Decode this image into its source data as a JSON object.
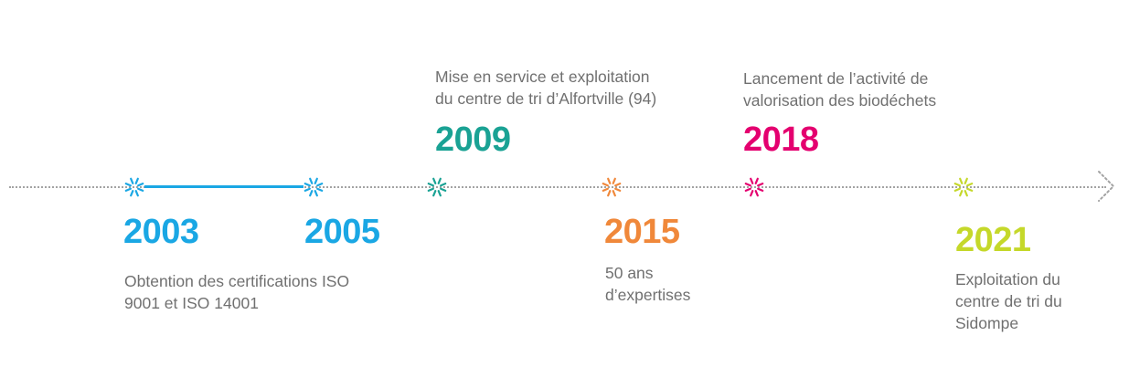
{
  "colors": {
    "blue": "#1aa7e4",
    "teal": "#1aa294",
    "orange": "#f0883a",
    "magenta": "#e4006f",
    "lime": "#c5d82a",
    "line": "#a3a3a3",
    "text": "#707070"
  },
  "timeline": {
    "arrow_icon": "chevron-right-dotted-icon",
    "marker_icon": "burst-marker-icon",
    "events": [
      {
        "year": "2003",
        "color": "#1aa7e4",
        "description": [
          "Obtention des certifications ISO",
          "9001 et ISO 14001"
        ]
      },
      {
        "year": "2005",
        "color": "#1aa7e4",
        "description": []
      },
      {
        "year": "2009",
        "color": "#1aa294",
        "description": [
          "Mise en service et exploitation",
          "du centre de tri d’Alfortville (94)"
        ]
      },
      {
        "year": "2015",
        "color": "#f0883a",
        "description": [
          "50 ans",
          "d’expertises"
        ]
      },
      {
        "year": "2018",
        "color": "#e4006f",
        "description": [
          "Lancement de l’activité de",
          "valorisation des biodéchets"
        ]
      },
      {
        "year": "2021",
        "color": "#c5d82a",
        "description": [
          "Exploitation du",
          "centre de tri du",
          "Sidompe"
        ]
      }
    ]
  }
}
